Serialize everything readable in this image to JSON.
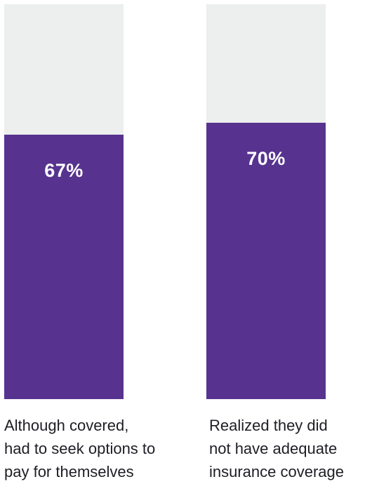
{
  "chart_data": {
    "type": "bar",
    "categories": [
      "Although covered, had to seek options to pay for themselves",
      "Realized they did not have adequate insurance coverage"
    ],
    "caption_lines": [
      [
        "Although covered,",
        "had to seek options to",
        "pay for themselves"
      ],
      [
        "Realized they did",
        "not have adequate",
        "insurance coverage"
      ]
    ],
    "values": [
      67,
      70
    ],
    "value_labels": [
      "67%",
      "70%"
    ],
    "unit": "%",
    "ylim": [
      0,
      100
    ],
    "grid": false,
    "legend": "none",
    "colors": {
      "fill": "#57338f",
      "track": "#ecefed"
    }
  }
}
